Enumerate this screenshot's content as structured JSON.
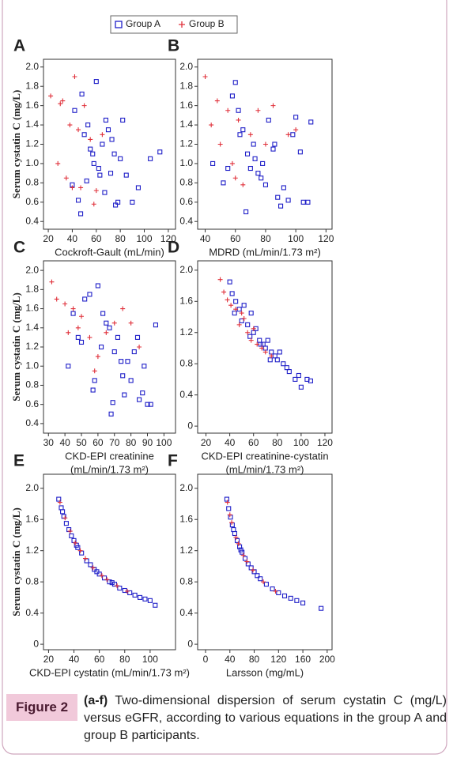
{
  "chart_data": [
    {
      "type": "scatter",
      "label": "A",
      "ylabel": "Serum cystatin C (mg/L)",
      "xlabel": [
        "Cockroft-Gault (mL/min)"
      ],
      "xlim": [
        16,
        126
      ],
      "ylim": [
        0.32,
        2.08
      ],
      "xticks": [
        20,
        40,
        60,
        80,
        100,
        120
      ],
      "yticks": [
        0.4,
        0.6,
        0.8,
        {
          "value": 1.0,
          "label": "1.0"
        },
        1.2,
        1.4,
        1.6,
        1.8,
        {
          "value": 2.0,
          "label": "2.0"
        }
      ],
      "series": [
        {
          "name": "Group A",
          "color": "#1f1fc8",
          "marker": "square",
          "x": [
            42,
            48,
            50,
            55,
            58,
            60,
            62,
            65,
            68,
            70,
            72,
            75,
            78,
            80,
            45,
            52,
            57,
            63,
            67,
            73,
            85,
            90,
            95,
            105,
            113,
            40,
            47,
            53,
            76,
            82
          ],
          "y": [
            1.55,
            1.72,
            1.3,
            1.15,
            1.0,
            1.85,
            0.95,
            1.2,
            1.45,
            1.35,
            0.9,
            1.1,
            0.6,
            1.05,
            0.62,
            0.82,
            1.1,
            0.88,
            0.7,
            1.25,
            0.88,
            0.6,
            0.75,
            1.05,
            1.12,
            0.78,
            0.48,
            1.4,
            0.57,
            1.45
          ]
        },
        {
          "name": "Group B",
          "color": "#e0303a",
          "marker": "plus",
          "x": [
            22,
            30,
            32,
            38,
            42,
            45,
            50,
            35,
            55,
            60,
            28,
            40,
            47,
            65,
            58
          ],
          "y": [
            1.7,
            1.62,
            1.65,
            1.4,
            1.9,
            1.35,
            1.6,
            0.85,
            1.25,
            0.72,
            1.0,
            0.75,
            0.75,
            1.3,
            0.58
          ]
        }
      ]
    },
    {
      "type": "scatter",
      "label": "B",
      "xlabel": [
        "MDRD (mL/min/1.73 m²)"
      ],
      "xlim": [
        35,
        124
      ],
      "ylim": [
        0.32,
        2.08
      ],
      "xticks": [
        40,
        60,
        80,
        100,
        120
      ],
      "yticks": [
        0.4,
        0.6,
        0.8,
        {
          "value": 1.0,
          "label": "1.0"
        },
        1.2,
        1.4,
        1.6,
        1.8,
        {
          "value": 2.0,
          "label": "2.0"
        }
      ],
      "series": [
        {
          "name": "Group A",
          "color": "#1f1fc8",
          "marker": "square",
          "x": [
            45,
            52,
            58,
            60,
            62,
            65,
            68,
            70,
            72,
            75,
            78,
            80,
            82,
            85,
            88,
            90,
            95,
            100,
            103,
            105,
            110,
            55,
            63,
            73,
            77,
            92,
            67,
            86,
            98,
            108
          ],
          "y": [
            1.0,
            0.8,
            1.7,
            1.84,
            1.55,
            1.35,
            1.1,
            0.95,
            1.2,
            0.9,
            1.0,
            0.78,
            1.45,
            1.15,
            0.65,
            0.56,
            0.62,
            1.48,
            1.12,
            0.6,
            1.43,
            0.95,
            1.3,
            1.05,
            0.85,
            0.75,
            0.5,
            1.2,
            1.3,
            0.6
          ]
        },
        {
          "name": "Group B",
          "color": "#e0303a",
          "marker": "plus",
          "x": [
            40,
            44,
            48,
            50,
            55,
            58,
            62,
            65,
            70,
            75,
            80,
            85,
            95,
            100,
            60
          ],
          "y": [
            1.9,
            1.4,
            1.65,
            1.2,
            1.55,
            1.0,
            1.45,
            0.78,
            1.3,
            1.55,
            1.2,
            1.6,
            1.3,
            1.35,
            0.85
          ]
        }
      ]
    },
    {
      "type": "scatter",
      "label": "C",
      "ylabel": "Serum cystatin C (mg/L)",
      "xlabel": [
        "CKD-EPI creatinine",
        "(mL/min/1.73 m²)"
      ],
      "xlim": [
        27,
        107
      ],
      "ylim": [
        0.3,
        2.1
      ],
      "xticks": [
        30,
        40,
        50,
        60,
        70,
        80,
        90,
        100
      ],
      "yticks": [
        0.4,
        0.6,
        0.8,
        {
          "value": 1.0,
          "label": "1.0"
        },
        1.2,
        1.4,
        1.6,
        1.8,
        {
          "value": 2.0,
          "label": "2.0"
        }
      ],
      "series": [
        {
          "name": "Group A",
          "color": "#1f1fc8",
          "marker": "square",
          "x": [
            42,
            48,
            52,
            55,
            58,
            60,
            62,
            65,
            68,
            70,
            72,
            74,
            76,
            78,
            80,
            82,
            85,
            88,
            90,
            95,
            50,
            57,
            67,
            75,
            84,
            92,
            87,
            63,
            69,
            45
          ],
          "y": [
            1.0,
            1.3,
            1.7,
            1.75,
            0.85,
            1.84,
            1.2,
            1.45,
            0.5,
            1.15,
            1.3,
            1.05,
            0.7,
            1.05,
            0.85,
            1.15,
            0.65,
            1.0,
            0.6,
            1.43,
            1.25,
            0.75,
            1.4,
            0.9,
            1.3,
            0.6,
            0.72,
            1.55,
            0.62,
            1.55
          ]
        },
        {
          "name": "Group B",
          "color": "#e0303a",
          "marker": "plus",
          "x": [
            32,
            35,
            40,
            45,
            48,
            50,
            55,
            60,
            65,
            70,
            75,
            80,
            85,
            58,
            42
          ],
          "y": [
            1.88,
            1.7,
            1.65,
            1.6,
            1.4,
            1.52,
            1.3,
            1.1,
            1.35,
            1.45,
            1.6,
            1.45,
            1.2,
            0.95,
            1.35
          ]
        }
      ]
    },
    {
      "type": "scatter",
      "label": "D",
      "xlabel": [
        "CKD-EPI creatinine-cystatin",
        "(mL/min/1.73 m²)"
      ],
      "xlim": [
        13,
        126
      ],
      "ylim": [
        -0.09,
        2.12
      ],
      "xticks": [
        20,
        40,
        60,
        80,
        100,
        120
      ],
      "yticks": [
        0,
        0.4,
        0.8,
        1.2,
        1.6,
        {
          "value": 2.0,
          "label": "2.0"
        }
      ],
      "series": [
        {
          "name": "Group A",
          "color": "#1f1fc8",
          "marker": "square",
          "x": [
            40,
            42,
            45,
            48,
            50,
            52,
            55,
            58,
            60,
            62,
            65,
            68,
            70,
            72,
            75,
            78,
            80,
            82,
            85,
            88,
            90,
            95,
            98,
            100,
            105,
            108,
            44,
            57,
            66,
            74
          ],
          "y": [
            1.85,
            1.7,
            1.6,
            1.5,
            1.35,
            1.55,
            1.3,
            1.45,
            1.2,
            1.25,
            1.1,
            1.05,
            1.0,
            1.1,
            0.95,
            0.9,
            0.85,
            0.95,
            0.8,
            0.75,
            0.7,
            0.6,
            0.65,
            0.5,
            0.6,
            0.58,
            1.45,
            1.15,
            1.05,
            0.85
          ]
        },
        {
          "name": "Group B",
          "color": "#e0303a",
          "marker": "plus",
          "x": [
            32,
            35,
            38,
            41,
            45,
            48,
            52,
            55,
            60,
            63,
            67,
            70,
            75,
            50,
            58
          ],
          "y": [
            1.88,
            1.72,
            1.62,
            1.55,
            1.5,
            1.3,
            1.38,
            1.2,
            1.25,
            1.05,
            1.0,
            0.95,
            0.9,
            1.45,
            1.1
          ]
        }
      ]
    },
    {
      "type": "scatter",
      "label": "E",
      "ylabel": "Serum cystatin C (mg/L)",
      "xlabel": [
        "CKD-EPI cystatin (mL/min/1.73 m²)"
      ],
      "xlim": [
        16,
        120
      ],
      "ylim": [
        -0.07,
        2.18
      ],
      "xticks": [
        20,
        40,
        60,
        80,
        100
      ],
      "yticks": [
        0,
        0.4,
        0.8,
        1.2,
        1.6,
        {
          "value": 2.0,
          "label": "2.0"
        }
      ],
      "series": [
        {
          "name": "Group A",
          "color": "#1f1fc8",
          "marker": "square",
          "x": [
            28,
            30,
            32,
            34,
            36,
            38,
            40,
            43,
            46,
            50,
            53,
            56,
            60,
            64,
            68,
            72,
            76,
            80,
            84,
            88,
            92,
            96,
            100,
            104,
            31,
            42,
            58,
            70
          ],
          "y": [
            1.86,
            1.75,
            1.64,
            1.55,
            1.47,
            1.39,
            1.33,
            1.24,
            1.17,
            1.07,
            1.02,
            0.96,
            0.9,
            0.85,
            0.8,
            0.77,
            0.72,
            0.69,
            0.66,
            0.63,
            0.6,
            0.58,
            0.56,
            0.5,
            1.7,
            1.27,
            0.93,
            0.79
          ]
        },
        {
          "name": "Group B",
          "color": "#e0303a",
          "marker": "plus",
          "x": [
            29,
            33,
            37,
            41,
            45,
            49,
            55,
            62,
            66,
            74,
            82
          ],
          "y": [
            1.82,
            1.62,
            1.45,
            1.3,
            1.2,
            1.1,
            0.98,
            0.88,
            0.83,
            0.75,
            0.68
          ]
        }
      ]
    },
    {
      "type": "scatter",
      "label": "F",
      "xlabel": [
        "Larsson (mg/mL)"
      ],
      "xlim": [
        -13,
        208
      ],
      "ylim": [
        -0.07,
        2.18
      ],
      "xticks": [
        0,
        40,
        80,
        120,
        160,
        200
      ],
      "yticks": [
        0,
        0.4,
        0.8,
        1.2,
        1.6,
        {
          "value": 2.0,
          "label": "2.0"
        }
      ],
      "series": [
        {
          "name": "Group A",
          "color": "#1f1fc8",
          "marker": "square",
          "x": [
            35,
            38,
            41,
            44,
            48,
            52,
            56,
            60,
            65,
            70,
            75,
            80,
            90,
            100,
            110,
            120,
            130,
            140,
            150,
            160,
            190,
            46,
            58,
            85
          ],
          "y": [
            1.86,
            1.74,
            1.63,
            1.53,
            1.42,
            1.33,
            1.25,
            1.18,
            1.1,
            1.03,
            0.98,
            0.93,
            0.84,
            0.77,
            0.71,
            0.66,
            0.62,
            0.59,
            0.56,
            0.53,
            0.46,
            1.47,
            1.21,
            0.88
          ]
        },
        {
          "name": "Group B",
          "color": "#e0303a",
          "marker": "plus",
          "x": [
            36,
            40,
            43,
            50,
            54,
            62,
            68,
            78,
            95,
            115
          ],
          "y": [
            1.82,
            1.66,
            1.56,
            1.37,
            1.29,
            1.14,
            1.06,
            0.95,
            0.8,
            0.68
          ]
        }
      ]
    }
  ],
  "caption": {
    "label": "Figure 2",
    "lead": "(a-f)",
    "text": "Two-dimensional dispersion of serum cystatin C (mg/L) versus eGFR, according to various equations in the group A and group B participants."
  }
}
